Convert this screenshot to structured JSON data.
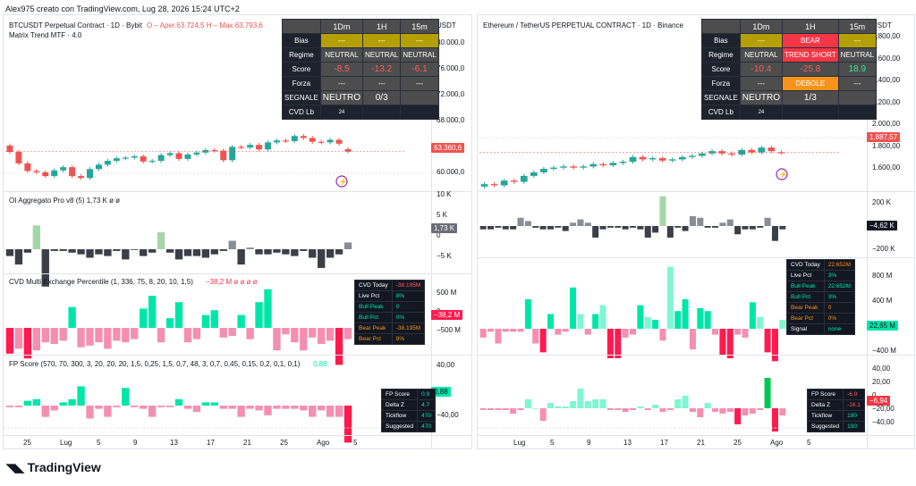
{
  "caption": "Alex975 creato con TradingView.com, Lug 28, 2026 15:24 UTC+2",
  "brand": "TradingView",
  "left": {
    "symbol": "BTCUSDT Perpetual Contract · 1D · Bybit",
    "ohlc": "O – Aper.63.724,5  H – Max.63.793,6",
    "indicator1": "Matrix Trend MTF · 4.0",
    "currency": "USDT",
    "price_axis": [
      "80.000,0",
      "76.000,0",
      "72.000,0",
      "68.000,0",
      "64.000,0",
      "60.000,0"
    ],
    "last_price": "63.360,6",
    "oi_label": "OI Aggregato Pro v8 (5)  1,73 K  ø  ø",
    "oi_axis": [
      "10 K",
      "5 K",
      "0",
      "−5 K"
    ],
    "oi_last": "1,73 K",
    "cvd_label": "CVD Multi Exchange Percentile (1, 336, 75, 8, 20, 10, 1,5)",
    "cvd_value": "−38,2 M  ø  ø  ø  ø",
    "cvd_axis": [
      "500 M",
      "0",
      "−500 M"
    ],
    "cvd_last": "−38,2 M",
    "fp_label": "FP Score (570, 70, 300, 3, 20, 20, 20, 1,5, 0,25, 1,5, 0,7, 48, 3, 0,7, 0,45, 0,15, 0,2, 0,1, 0,1)",
    "fp_value": "0,88",
    "fp_axis": [
      "40,00",
      "0",
      "−40,00"
    ],
    "fp_last": "0,88",
    "x_axis": [
      "25",
      "Lug",
      "5",
      "9",
      "13",
      "17",
      "21",
      "25",
      "Ago",
      "5"
    ],
    "matrix": {
      "headers": [
        "",
        "1Dm",
        "1H",
        "15m"
      ],
      "rows": [
        {
          "label": "Bias",
          "cells": [
            "---",
            "---",
            "---"
          ]
        },
        {
          "label": "Regime",
          "cells": [
            "NEUTRAL",
            "NEUTRAL",
            "NEUTRAL"
          ]
        },
        {
          "label": "Score",
          "cells": [
            "-8.5",
            "-13.2",
            "-6.1"
          ]
        },
        {
          "label": "Forza",
          "cells": [
            "---",
            "---",
            "---"
          ]
        },
        {
          "label": "SEGNALE",
          "cells": [
            "NEUTRO",
            "0/3",
            ""
          ]
        },
        {
          "label": "CVD Lb",
          "cells": [
            "24",
            "",
            ""
          ]
        }
      ]
    },
    "cvd_table": [
      {
        "k": "CVD Today",
        "v": "-38.195M"
      },
      {
        "k": "Live Pct",
        "v": "8%"
      },
      {
        "k": "Bull Peak",
        "v": "0"
      },
      {
        "k": "Bull Pct",
        "v": "0%"
      },
      {
        "k": "Bear Peak",
        "v": "-38.195M"
      },
      {
        "k": "Bear Pct",
        "v": "8%"
      }
    ],
    "fp_table": [
      {
        "k": "FP Score",
        "v": "0.9"
      },
      {
        "k": "Delta Z",
        "v": "4.7"
      },
      {
        "k": "Tickflow",
        "v": "470"
      },
      {
        "k": "Suggested",
        "v": "470"
      }
    ]
  },
  "right": {
    "symbol": "Ethereum / TetherUS PERPETUAL CONTRACT · 1D · Binance",
    "currency": "USDT",
    "price_axis": [
      "2.800,00",
      "2.600,00",
      "2.400,00",
      "2.200,00",
      "2.000,00",
      "1.800,00",
      "1.600,00"
    ],
    "last_price": "1.887,57",
    "oi_axis": [
      "200 K",
      "0",
      "−200 K"
    ],
    "oi_last": "−4,62 K",
    "cvd_axis": [
      "800 M",
      "400 M",
      "0",
      "−400 M"
    ],
    "cvd_last": "22,65 M",
    "fp_axis": [
      "40,00",
      "20,00",
      "0",
      "−20,00",
      "−40,00"
    ],
    "fp_last": "−6,94",
    "x_axis": [
      "Lug",
      "5",
      "9",
      "13",
      "17",
      "21",
      "25",
      "Ago",
      "5"
    ],
    "matrix": {
      "headers": [
        "",
        "1Dm",
        "1H",
        "15m"
      ],
      "rows": [
        {
          "label": "Bias",
          "cells": [
            "---",
            "BEAR",
            "---"
          ]
        },
        {
          "label": "Regime",
          "cells": [
            "NEUTRAL",
            "TREND SHORT",
            "NEUTRAL"
          ]
        },
        {
          "label": "Score",
          "cells": [
            "-10.4",
            "-25.8",
            "18.9"
          ]
        },
        {
          "label": "Forza",
          "cells": [
            "---",
            "DEBOLE",
            "---"
          ]
        },
        {
          "label": "SEGNALE",
          "cells": [
            "NEUTRO",
            "1/3",
            ""
          ]
        },
        {
          "label": "CVD Lb",
          "cells": [
            "24",
            "",
            ""
          ]
        }
      ]
    },
    "cvd_table": [
      {
        "k": "CVD Today",
        "v": "22.652M"
      },
      {
        "k": "Live Pct",
        "v": "3%"
      },
      {
        "k": "Bull Peak",
        "v": "22.652M"
      },
      {
        "k": "Bull Pct",
        "v": "3%"
      },
      {
        "k": "Bear Peak",
        "v": "0"
      },
      {
        "k": "Bear Pct",
        "v": "0%"
      },
      {
        "k": "Signal",
        "v": "none"
      }
    ],
    "fp_table": [
      {
        "k": "FP Score",
        "v": "-6.9"
      },
      {
        "k": "Delta Z",
        "v": "-16.1"
      },
      {
        "k": "Tickflow",
        "v": "190"
      },
      {
        "k": "Suggested",
        "v": "190"
      }
    ]
  },
  "colors": {
    "up": "#26a69a",
    "down": "#ef5350",
    "bull_hist": "#00e6a8",
    "bear_hist": "#ff1a4f",
    "oi_bar": "#6b6e78",
    "bear_cell": "#f23645",
    "gold": "#b5a004",
    "orange": "#f7931a"
  },
  "chart_data": [
    {
      "type": "candlestick",
      "title": "BTCUSDT Perpetual Contract · 1D · Bybit",
      "ylabel": "USDT",
      "ylim": [
        56000,
        82000
      ],
      "x": [
        "Jun 20",
        "Jun 21",
        "Jun 22",
        "Jun 23",
        "Jun 24",
        "Jun 25",
        "Jun 26",
        "Jun 27",
        "Jun 28",
        "Jun 29",
        "Jun 30",
        "Jul 1",
        "Jul 2",
        "Jul 3",
        "Jul 4",
        "Jul 5",
        "Jul 6",
        "Jul 7",
        "Jul 8",
        "Jul 9",
        "Jul 10",
        "Jul 11",
        "Jul 12",
        "Jul 13",
        "Jul 14",
        "Jul 15",
        "Jul 16",
        "Jul 17",
        "Jul 18",
        "Jul 19",
        "Jul 20",
        "Jul 21",
        "Jul 22",
        "Jul 23",
        "Jul 24",
        "Jul 25",
        "Jul 26",
        "Jul 27",
        "Jul 28"
      ],
      "close": [
        63300,
        61500,
        60300,
        60100,
        59500,
        60400,
        60900,
        59500,
        59200,
        60600,
        61300,
        61900,
        62300,
        62400,
        62600,
        61800,
        61900,
        62800,
        63100,
        62200,
        62900,
        63200,
        63600,
        63500,
        62000,
        64100,
        64000,
        64400,
        63700,
        64800,
        65100,
        65000,
        65800,
        65500,
        64900,
        64800,
        65200,
        64600,
        63360
      ],
      "open": [
        64300,
        63300,
        61500,
        60300,
        60100,
        59500,
        60400,
        60900,
        59500,
        59200,
        60600,
        61300,
        61900,
        62300,
        62400,
        62600,
        61800,
        61900,
        62800,
        63100,
        62200,
        62900,
        63200,
        63600,
        63500,
        62000,
        64100,
        64000,
        64400,
        63700,
        64800,
        65100,
        65000,
        65800,
        65500,
        64900,
        64800,
        65200,
        63724
      ]
    },
    {
      "type": "candlestick",
      "title": "Ethereum / TetherUS PERPETUAL CONTRACT · 1D · Binance",
      "ylabel": "USDT",
      "ylim": [
        1500,
        2900
      ],
      "x": [
        "Jun 28",
        "Jun 29",
        "Jun 30",
        "Jul 1",
        "Jul 2",
        "Jul 3",
        "Jul 4",
        "Jul 5",
        "Jul 6",
        "Jul 7",
        "Jul 8",
        "Jul 9",
        "Jul 10",
        "Jul 11",
        "Jul 12",
        "Jul 13",
        "Jul 14",
        "Jul 15",
        "Jul 16",
        "Jul 17",
        "Jul 18",
        "Jul 19",
        "Jul 20",
        "Jul 21",
        "Jul 22",
        "Jul 23",
        "Jul 24",
        "Jul 25",
        "Jul 26",
        "Jul 27",
        "Jul 28"
      ],
      "close": [
        1620,
        1610,
        1650,
        1640,
        1690,
        1720,
        1750,
        1760,
        1770,
        1760,
        1770,
        1790,
        1780,
        1800,
        1810,
        1850,
        1830,
        1840,
        1820,
        1830,
        1850,
        1860,
        1880,
        1900,
        1880,
        1870,
        1910,
        1890,
        1930,
        1900,
        1887
      ],
      "open": [
        1600,
        1620,
        1610,
        1650,
        1640,
        1690,
        1720,
        1750,
        1760,
        1770,
        1760,
        1770,
        1790,
        1780,
        1800,
        1810,
        1850,
        1830,
        1840,
        1820,
        1830,
        1850,
        1860,
        1880,
        1900,
        1880,
        1870,
        1910,
        1890,
        1930,
        1891
      ]
    }
  ]
}
